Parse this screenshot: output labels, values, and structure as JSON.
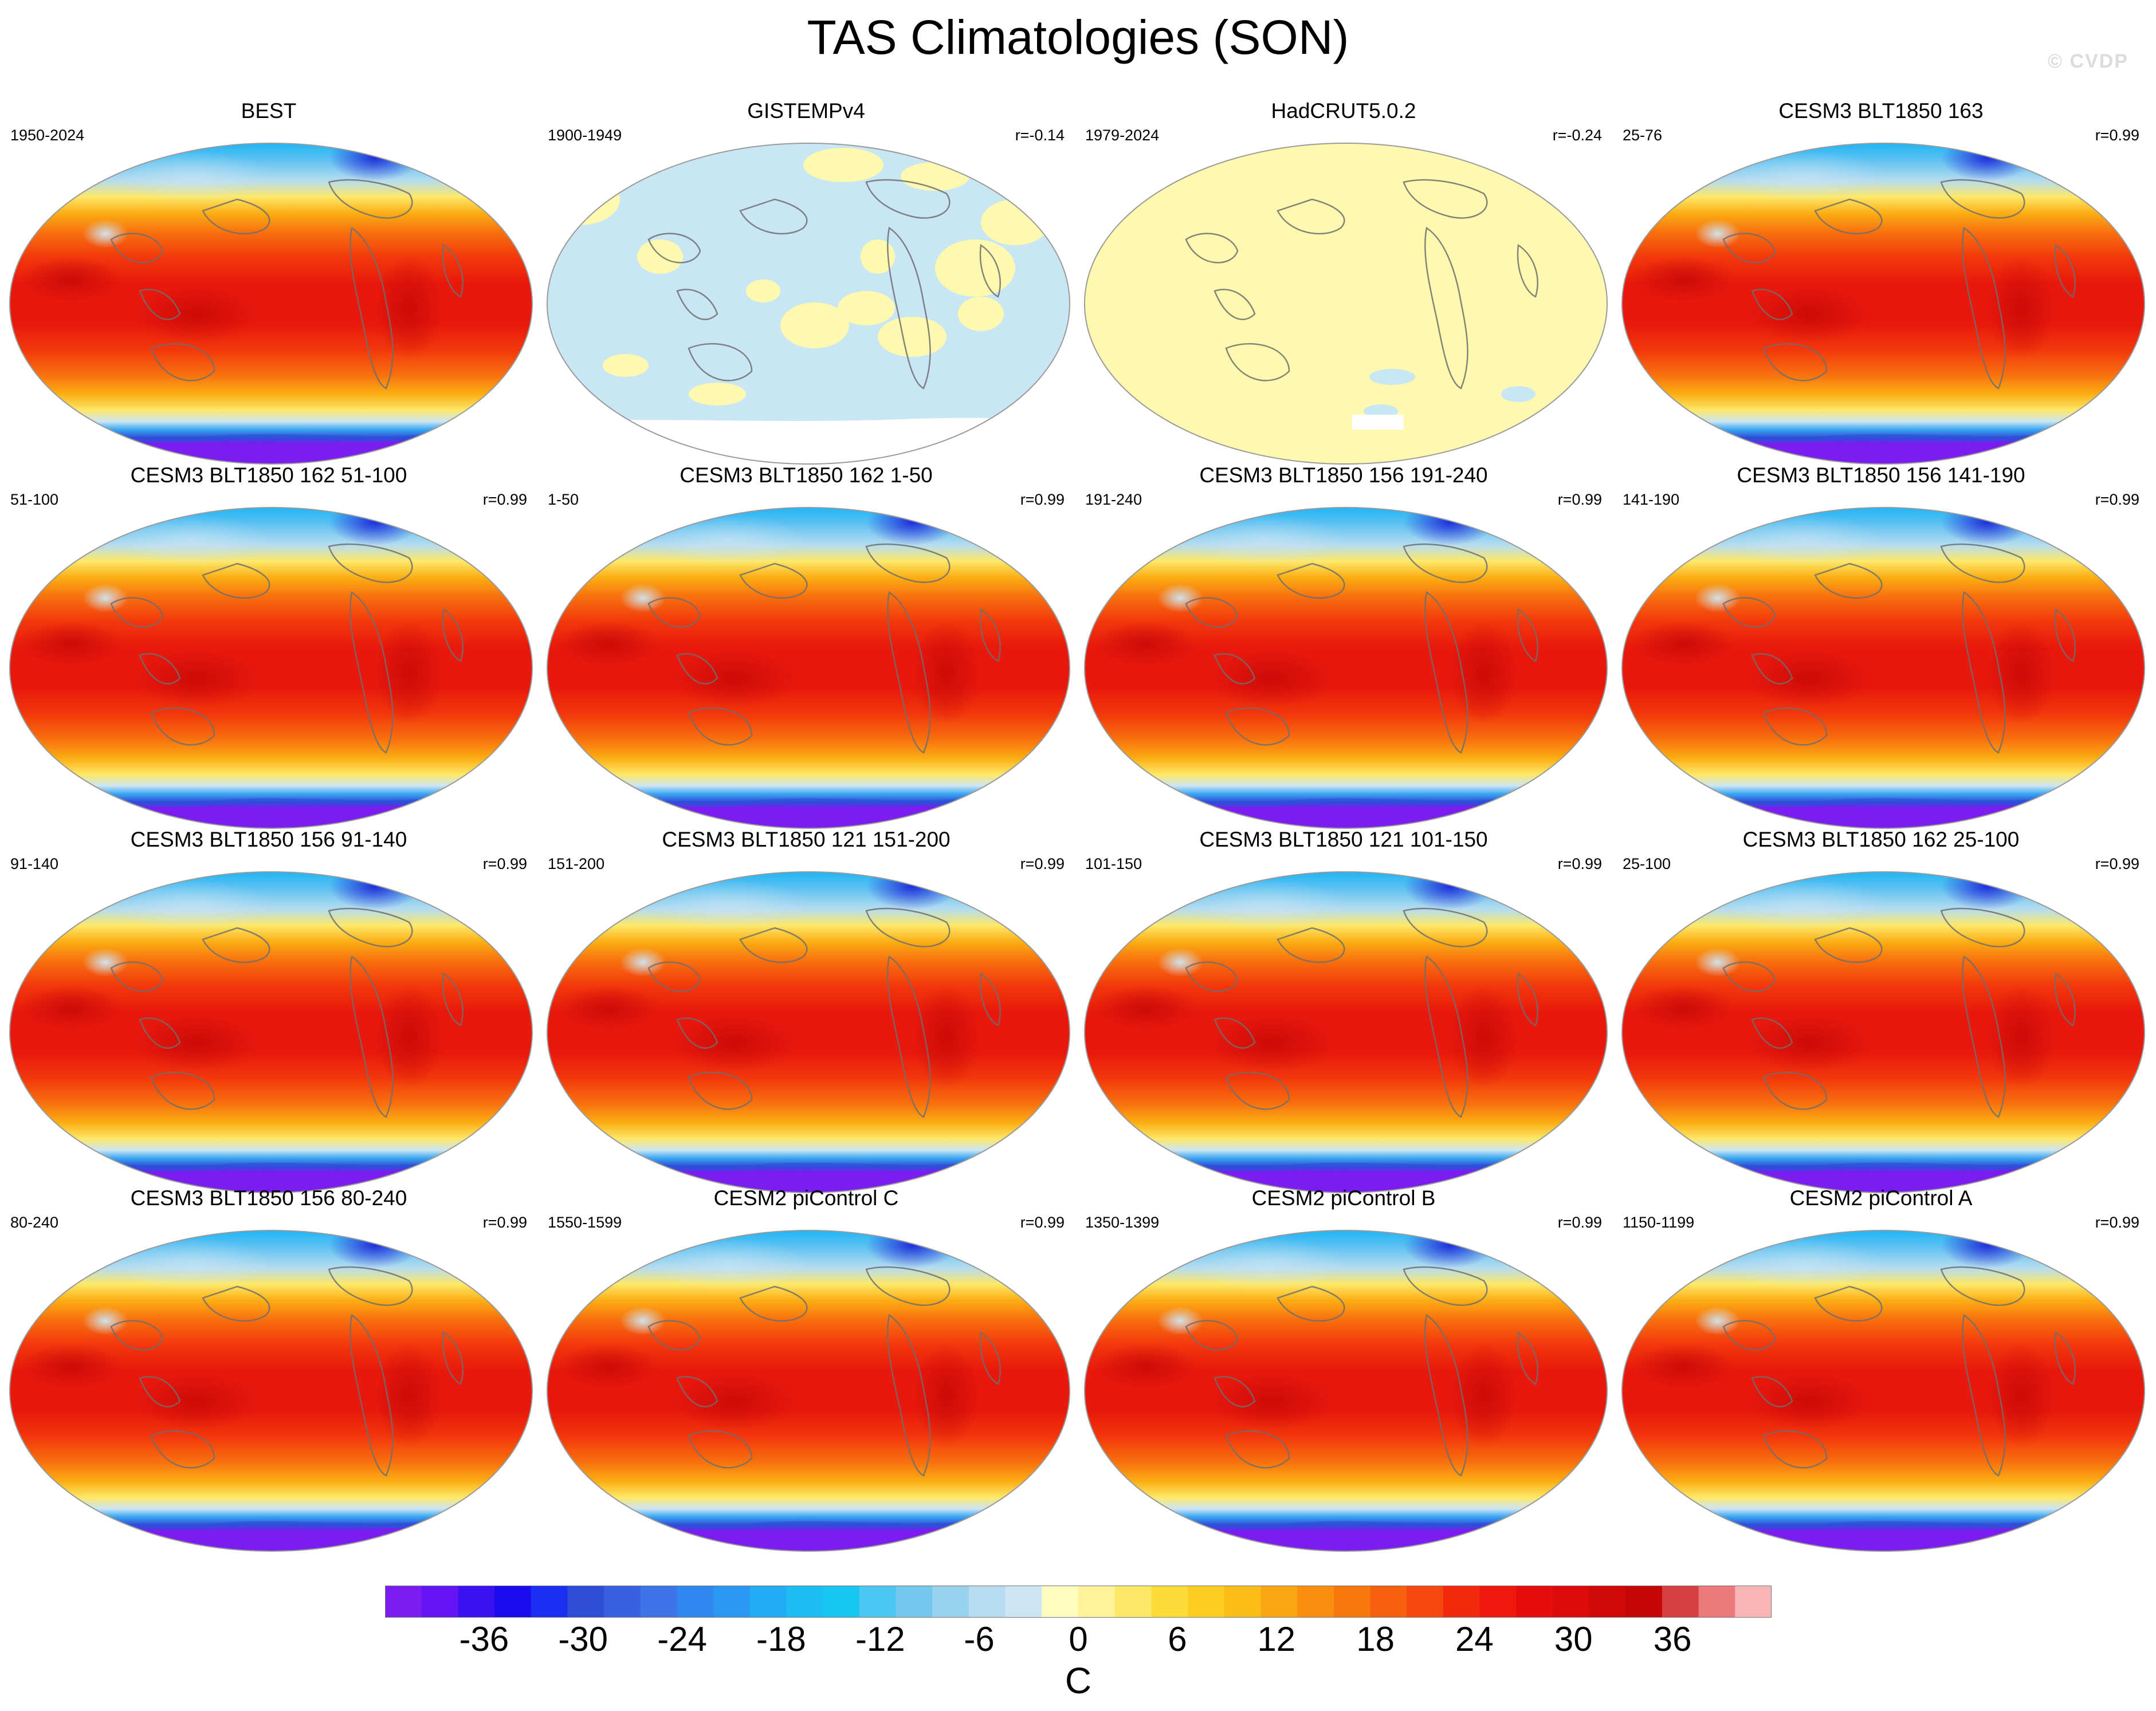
{
  "title": "TAS Climatologies (SON)",
  "watermark": "© CVDP",
  "colors": {
    "land": "#fff9b0",
    "ocean_light": "#c9e6f5",
    "coast": "#6e6e6e",
    "warm": "#e8180c",
    "cold": "#7b1cf0"
  },
  "chart_data": {
    "type": "heatmap",
    "description_kind": "multi-panel global map climatology",
    "panels": [
      {
        "title": "BEST",
        "years": "1950-2024",
        "r": "",
        "style": "full"
      },
      {
        "title": "GISTEMPv4",
        "years": "1900-1949",
        "r": "r=-0.14",
        "style": "gistemp"
      },
      {
        "title": "HadCRUT5.0.2",
        "years": "1979-2024",
        "r": "r=-0.24",
        "style": "hadcrut"
      },
      {
        "title": "CESM3 BLT1850 163",
        "years": "25-76",
        "r": "r=0.99",
        "style": "full"
      },
      {
        "title": "CESM3 BLT1850 162 51-100",
        "years": "51-100",
        "r": "r=0.99",
        "style": "full"
      },
      {
        "title": "CESM3 BLT1850 162 1-50",
        "years": "1-50",
        "r": "r=0.99",
        "style": "full"
      },
      {
        "title": "CESM3 BLT1850 156 191-240",
        "years": "191-240",
        "r": "r=0.99",
        "style": "full"
      },
      {
        "title": "CESM3 BLT1850 156 141-190",
        "years": "141-190",
        "r": "r=0.99",
        "style": "full"
      },
      {
        "title": "CESM3 BLT1850 156 91-140",
        "years": "91-140",
        "r": "r=0.99",
        "style": "full"
      },
      {
        "title": "CESM3 BLT1850 121 151-200",
        "years": "151-200",
        "r": "r=0.99",
        "style": "full"
      },
      {
        "title": "CESM3 BLT1850 121 101-150",
        "years": "101-150",
        "r": "r=0.99",
        "style": "full"
      },
      {
        "title": "CESM3 BLT1850 162 25-100",
        "years": "25-100",
        "r": "r=0.99",
        "style": "full"
      },
      {
        "title": "CESM3 BLT1850 156 80-240",
        "years": "80-240",
        "r": "r=0.99",
        "style": "full"
      },
      {
        "title": "CESM2 piControl C",
        "years": "1550-1599",
        "r": "r=0.99",
        "style": "full"
      },
      {
        "title": "CESM2 piControl B",
        "years": "1350-1399",
        "r": "r=0.99",
        "style": "full"
      },
      {
        "title": "CESM2 piControl A",
        "years": "1150-1199",
        "r": "r=0.99",
        "style": "full"
      }
    ],
    "colorbar": {
      "unit": "C",
      "tick_labels": [
        "-36",
        "-30",
        "-24",
        "-18",
        "-12",
        "-6",
        "0",
        "6",
        "12",
        "18",
        "24",
        "30",
        "36"
      ],
      "tick_values": [
        -36,
        -30,
        -24,
        -18,
        -12,
        -6,
        0,
        6,
        12,
        18,
        24,
        30,
        36
      ],
      "range": [
        -42,
        42
      ],
      "colors": [
        "#7b1cf0",
        "#6514f5",
        "#3a12f2",
        "#1b0cf0",
        "#1a2ff2",
        "#2f4ed8",
        "#3960e0",
        "#3f74e8",
        "#2e88f0",
        "#2a98f2",
        "#22acf5",
        "#1cbcf5",
        "#18c6f2",
        "#4cc6f2",
        "#74c8ee",
        "#98d2ee",
        "#b8dcf0",
        "#cce6f4",
        "#fffcc0",
        "#fff29a",
        "#fde868",
        "#fddc3a",
        "#fcce22",
        "#fcbd18",
        "#fba612",
        "#fa8f0f",
        "#f9780e",
        "#f7600e",
        "#f6470e",
        "#f2290c",
        "#ee180c",
        "#e60e0c",
        "#dc0a0a",
        "#d00808",
        "#c40606",
        "#d64040",
        "#ec7a7a",
        "#f9b6b6"
      ]
    }
  }
}
